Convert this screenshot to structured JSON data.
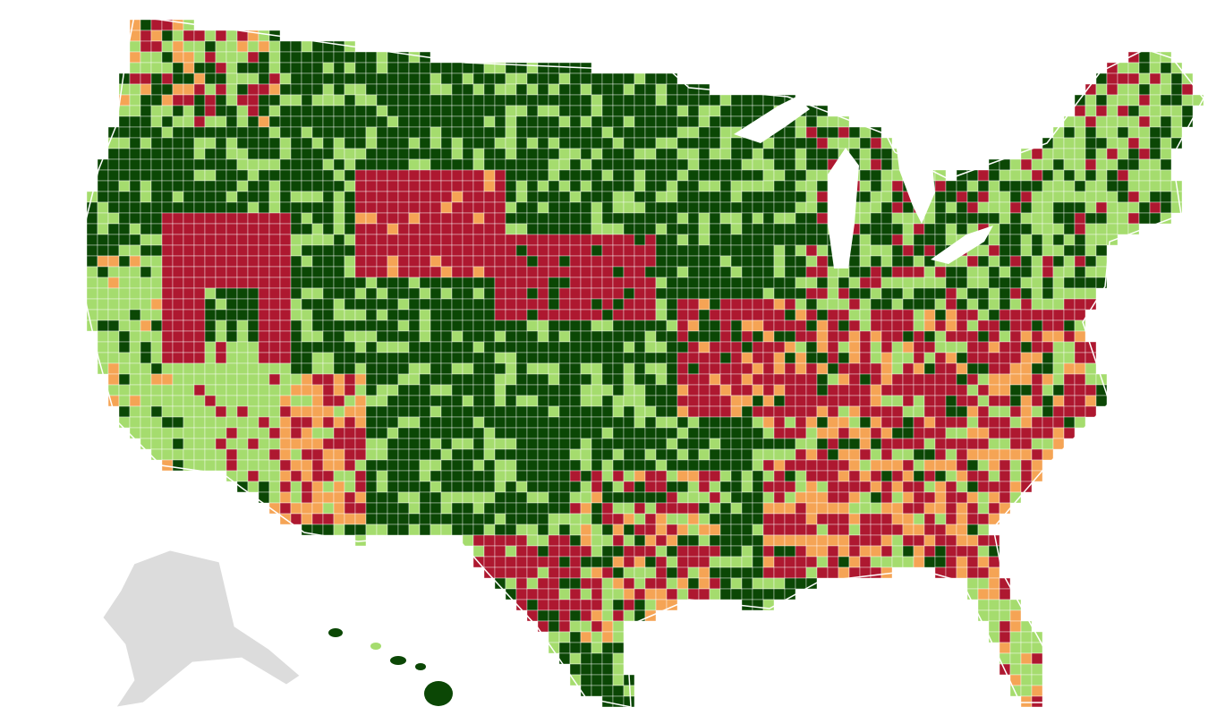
{
  "map": {
    "type": "choropleth",
    "colors": [
      "#0b4705",
      "#a5dc6e",
      "#f5a455",
      "#ae1830",
      "#dcdcdc"
    ]
  }
}
